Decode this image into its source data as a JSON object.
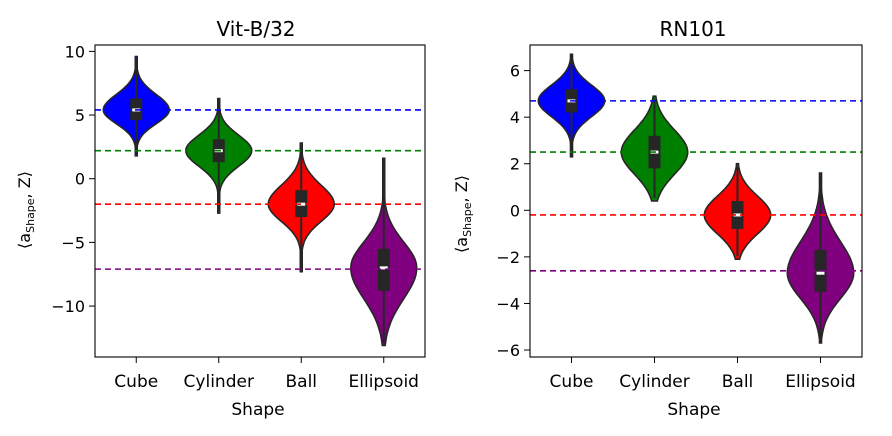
{
  "chart_data": [
    {
      "type": "violin",
      "title": "Vit-B/32",
      "xlabel": "Shape",
      "ylabel": "⟨a_Shape, Z⟩",
      "ylabel_main": "⟨a",
      "ylabel_sub": "Shape",
      "ylabel_tail": ", Z⟩",
      "categories": [
        "Cube",
        "Cylinder",
        "Ball",
        "Ellipsoid"
      ],
      "colors": [
        "#0000ff",
        "#008000",
        "#ff0000",
        "#800080"
      ],
      "ylim": [
        -14,
        10.5
      ],
      "yticks": [
        10,
        5,
        0,
        -5,
        -10
      ],
      "ytick_labels": [
        "10",
        "5",
        "0",
        "−5",
        "−10"
      ],
      "violins": [
        {
          "category": "Cube",
          "min": 1.8,
          "max": 9.6,
          "q1": 4.6,
          "median": 5.4,
          "q3": 6.3,
          "mean": 5.4
        },
        {
          "category": "Cylinder",
          "min": -2.7,
          "max": 6.3,
          "q1": 1.3,
          "median": 2.2,
          "q3": 3.1,
          "mean": 2.2
        },
        {
          "category": "Ball",
          "min": -7.3,
          "max": 2.8,
          "q1": -3.0,
          "median": -2.0,
          "q3": -0.9,
          "mean": -2.0
        },
        {
          "category": "Ellipsoid",
          "min": -13.1,
          "max": 1.6,
          "q1": -8.8,
          "median": -7.0,
          "q3": -5.5,
          "mean": -7.1
        }
      ],
      "hlines": [
        5.4,
        2.2,
        -2.0,
        -7.1
      ],
      "grid": false
    },
    {
      "type": "violin",
      "title": "RN101",
      "xlabel": "Shape",
      "ylabel": "⟨a_Shape, Z⟩",
      "ylabel_main": "⟨a",
      "ylabel_sub": "Shape",
      "ylabel_tail": ", Z⟩",
      "categories": [
        "Cube",
        "Cylinder",
        "Ball",
        "Ellipsoid"
      ],
      "colors": [
        "#0000ff",
        "#008000",
        "#ff0000",
        "#800080"
      ],
      "ylim": [
        -6.3,
        7.1
      ],
      "yticks": [
        6,
        4,
        2,
        0,
        -2,
        -4,
        -6
      ],
      "ytick_labels": [
        "6",
        "4",
        "2",
        "0",
        "−2",
        "−4",
        "−6"
      ],
      "violins": [
        {
          "category": "Cube",
          "min": 2.3,
          "max": 6.7,
          "q1": 4.2,
          "median": 4.7,
          "q3": 5.2,
          "mean": 4.7
        },
        {
          "category": "Cylinder",
          "min": 0.4,
          "max": 4.9,
          "q1": 1.8,
          "median": 2.5,
          "q3": 3.2,
          "mean": 2.5
        },
        {
          "category": "Ball",
          "min": -2.1,
          "max": 2.0,
          "q1": -0.8,
          "median": -0.2,
          "q3": 0.4,
          "mean": -0.2
        },
        {
          "category": "Ellipsoid",
          "min": -5.7,
          "max": 1.6,
          "q1": -3.5,
          "median": -2.7,
          "q3": -1.7,
          "mean": -2.6
        }
      ],
      "hlines": [
        4.7,
        2.5,
        -0.2,
        -2.6
      ],
      "grid": false
    }
  ]
}
